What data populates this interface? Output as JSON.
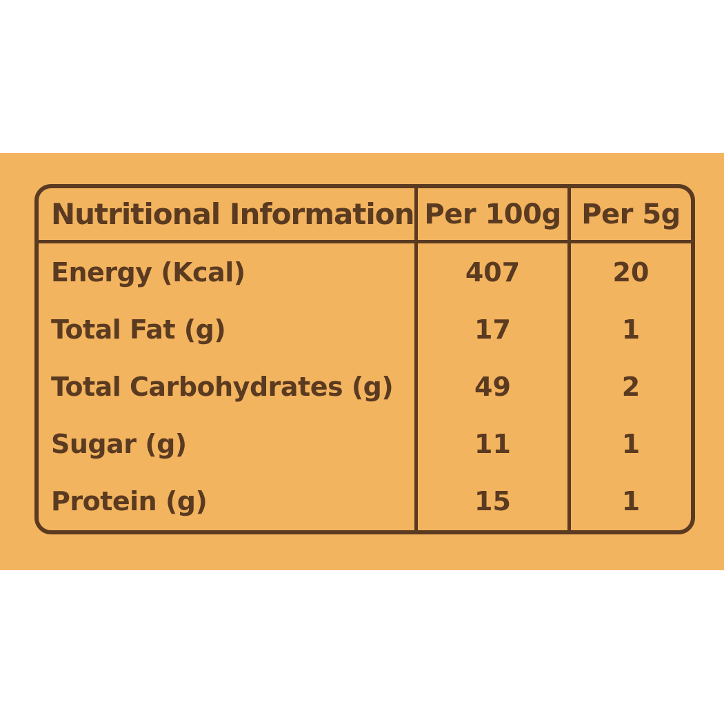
{
  "page": {
    "background_color": "#ffffff",
    "band_color": "#f3b45f",
    "text_color": "#5a3a20",
    "border_color": "#5a3a20"
  },
  "table": {
    "header": {
      "name": "Nutritional Information",
      "per_100g": "Per 100g",
      "per_5g": "Per 5g"
    },
    "rows": [
      {
        "label": "Energy (Kcal)",
        "per_100g": "407",
        "per_5g": "20"
      },
      {
        "label": "Total Fat (g)",
        "per_100g": "17",
        "per_5g": "1"
      },
      {
        "label": "Total Carbohydrates (g)",
        "per_100g": "49",
        "per_5g": "2"
      },
      {
        "label": "Sugar (g)",
        "per_100g": "11",
        "per_5g": "1"
      },
      {
        "label": "Protein (g)",
        "per_100g": "15",
        "per_5g": "1"
      }
    ]
  }
}
